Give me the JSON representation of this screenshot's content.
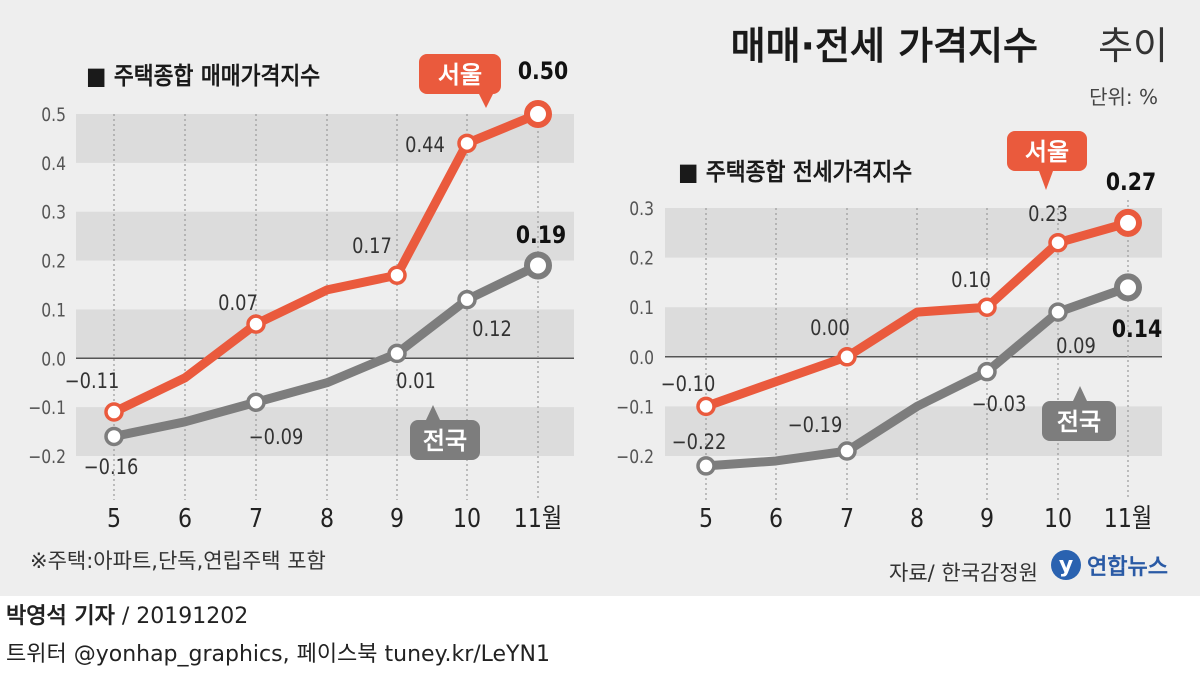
{
  "title_bold": "매매·전세 가격지수",
  "title_light": "추이",
  "unit": "단위: %",
  "footnote": "※주택:아파트,단독,연립주택 포함",
  "source": "자료/ 한국감정원",
  "logo_text": "연합뉴스",
  "byline_name": "박영석 기자",
  "byline_date": "/  20191202",
  "social": "트위터 @yonhap_graphics, 페이스북 tuney.kr/LeYN1",
  "colors": {
    "seoul": "#ea5a3d",
    "national": "#7d7d7d",
    "band": "#dcdcdc",
    "background": "#eeeeee"
  },
  "chart_data": [
    {
      "type": "line",
      "title": "■ 주택종합 매매가격지수",
      "categories": [
        "5",
        "6",
        "7",
        "8",
        "9",
        "10",
        "11월"
      ],
      "ylim": [
        -0.2,
        0.5
      ],
      "yticks": [
        "0.5",
        "0.4",
        "0.3",
        "0.2",
        "0.1",
        "0.0",
        "-0.1",
        "-0.2"
      ],
      "series": [
        {
          "name": "서울",
          "values": [
            -0.11,
            -0.04,
            0.07,
            0.14,
            0.17,
            0.44,
            0.5
          ],
          "labels": [
            "-0.11",
            null,
            "0.07",
            null,
            "0.17",
            "0.44",
            "0.50"
          ]
        },
        {
          "name": "전국",
          "values": [
            -0.16,
            -0.13,
            -0.09,
            -0.05,
            0.01,
            0.12,
            0.19
          ],
          "labels": [
            "-0.16",
            null,
            "-0.09",
            null,
            "0.01",
            "0.12",
            "0.19"
          ]
        }
      ]
    },
    {
      "type": "line",
      "title": "■ 주택종합 전세가격지수",
      "categories": [
        "5",
        "6",
        "7",
        "8",
        "9",
        "10",
        "11월"
      ],
      "ylim": [
        -0.2,
        0.3
      ],
      "yticks": [
        "0.3",
        "0.2",
        "0.1",
        "0.0",
        "-0.1",
        "-0.2"
      ],
      "series": [
        {
          "name": "서울",
          "values": [
            -0.1,
            -0.05,
            0.0,
            0.09,
            0.1,
            0.23,
            0.27
          ],
          "labels": [
            "-0.10",
            null,
            "0.00",
            null,
            "0.10",
            "0.23",
            "0.27"
          ]
        },
        {
          "name": "전국",
          "values": [
            -0.22,
            -0.21,
            -0.19,
            -0.1,
            -0.03,
            0.09,
            0.14
          ],
          "labels": [
            "-0.22",
            null,
            "-0.19",
            null,
            "-0.03",
            "0.09",
            "0.14"
          ]
        }
      ]
    }
  ]
}
